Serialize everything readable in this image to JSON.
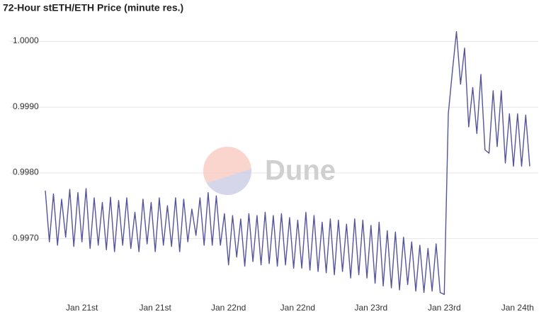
{
  "chart_data": {
    "type": "line",
    "title": "72-Hour stETH/ETH Price (minute res.)",
    "watermark": "Dune",
    "color": "#54549a",
    "grid": true,
    "ylim": [
      0.9961,
      1.0002
    ],
    "yticks": [
      {
        "value": 0.997,
        "label": "0.9970"
      },
      {
        "value": 0.998,
        "label": "0.9980"
      },
      {
        "value": 0.999,
        "label": "0.9990"
      },
      {
        "value": 1.0,
        "label": "1.0000"
      }
    ],
    "categories": [
      null,
      null,
      null,
      null,
      null,
      null,
      null,
      null,
      null,
      "Jan 21st",
      null,
      null,
      null,
      null,
      null,
      null,
      null,
      null,
      null,
      null,
      null,
      null,
      null,
      null,
      null,
      null,
      null,
      "Jan 21st",
      null,
      null,
      null,
      null,
      null,
      null,
      null,
      null,
      null,
      null,
      null,
      null,
      null,
      null,
      null,
      null,
      null,
      "Jan 22nd",
      null,
      null,
      null,
      null,
      null,
      null,
      null,
      null,
      null,
      null,
      null,
      null,
      null,
      null,
      null,
      null,
      "Jan 22nd",
      null,
      null,
      null,
      null,
      null,
      null,
      null,
      null,
      null,
      null,
      null,
      null,
      null,
      null,
      null,
      null,
      null,
      "Jan 23rd",
      null,
      null,
      null,
      null,
      null,
      null,
      null,
      null,
      null,
      null,
      null,
      null,
      null,
      null,
      null,
      null,
      null,
      "Jan 23rd",
      null,
      null,
      null,
      null,
      null,
      null,
      null,
      null,
      null,
      null,
      null,
      null,
      null,
      null,
      null,
      null,
      null,
      "Jan 24th",
      null,
      null,
      null
    ],
    "values": [
      0.99773,
      0.99695,
      0.99768,
      0.9969,
      0.9976,
      0.99702,
      0.99775,
      0.99688,
      0.9977,
      0.99695,
      0.99776,
      0.99685,
      0.99762,
      0.9969,
      0.99755,
      0.99683,
      0.99763,
      0.9968,
      0.99758,
      0.9969,
      0.99762,
      0.99685,
      0.9974,
      0.9968,
      0.9976,
      0.99692,
      0.99755,
      0.9968,
      0.99762,
      0.9969,
      0.9975,
      0.99688,
      0.99762,
      0.9968,
      0.9976,
      0.99695,
      0.99745,
      0.99705,
      0.99762,
      0.9969,
      0.9977,
      0.9969,
      0.99765,
      0.9969,
      0.99738,
      0.9966,
      0.99735,
      0.99672,
      0.9973,
      0.99658,
      0.99738,
      0.99665,
      0.99735,
      0.9966,
      0.9974,
      0.99662,
      0.99735,
      0.99658,
      0.99738,
      0.9966,
      0.99732,
      0.99655,
      0.99728,
      0.99655,
      0.9974,
      0.99652,
      0.99735,
      0.9965,
      0.99725,
      0.99648,
      0.9973,
      0.99645,
      0.99728,
      0.9965,
      0.99722,
      0.9964,
      0.9973,
      0.99645,
      0.99728,
      0.9964,
      0.9972,
      0.99632,
      0.99725,
      0.99628,
      0.99712,
      0.99625,
      0.9971,
      0.99622,
      0.99702,
      0.9963,
      0.99695,
      0.9962,
      0.9969,
      0.99618,
      0.99685,
      0.9962,
      0.99692,
      0.99618,
      0.99615,
      0.9989,
      0.99955,
      1.00015,
      0.99935,
      0.9999,
      0.9987,
      0.9993,
      0.9986,
      0.9995,
      0.99835,
      0.9983,
      0.99925,
      0.9984,
      0.99925,
      0.99815,
      0.9989,
      0.9981,
      0.9989,
      0.9981,
      0.99888,
      0.9981
    ]
  }
}
